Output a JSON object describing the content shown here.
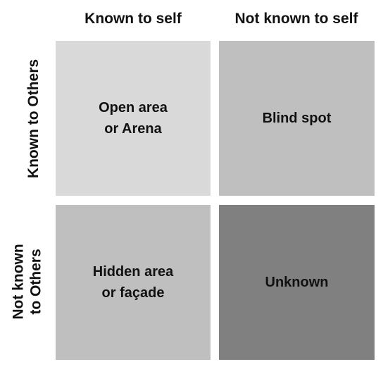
{
  "columns": {
    "known": "Known to self",
    "not_known": "Not known to self"
  },
  "rows": {
    "known": "Known to Others",
    "not_known_line1": "Not known",
    "not_known_line2": "to Others"
  },
  "quadrants": {
    "open": {
      "line1": "Open area",
      "line2": "or Arena",
      "color": "#d9d9d9"
    },
    "blind": {
      "line1": "Blind spot",
      "color": "#bfbfbf"
    },
    "hidden": {
      "line1": "Hidden area",
      "line2": "or façade",
      "color": "#bfbfbf"
    },
    "unknown": {
      "line1": "Unknown",
      "color": "#808080"
    }
  }
}
